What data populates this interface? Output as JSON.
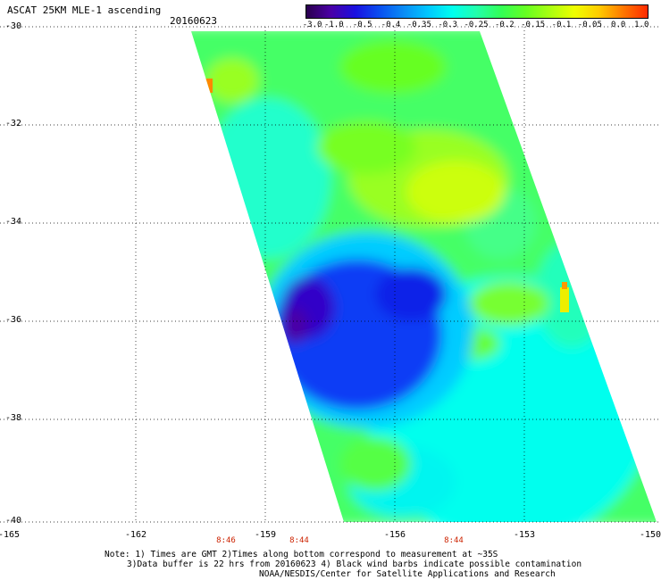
{
  "header": {
    "title": "ASCAT 25KM MLE-1 ascending",
    "date": "20160623"
  },
  "colorbar": {
    "ticks": [
      "-3.0",
      "-1.0",
      "-0.5",
      "-0.4",
      "-0.35",
      "-0.3",
      "-0.25",
      "-0.2",
      "-0.15",
      "-0.1",
      "-0.05",
      "0.0",
      "1.0"
    ],
    "colors": [
      "#2a004d",
      "#4a00a6",
      "#1a10e0",
      "#0a4ff0",
      "#0a8cf5",
      "#00c8ff",
      "#00ffee",
      "#22ffaa",
      "#33ff55",
      "#66ff22",
      "#aaff11",
      "#eeff00",
      "#ffcc00",
      "#ff7700",
      "#ff2a00"
    ]
  },
  "map": {
    "lat_labels": [
      "-30",
      "-32",
      "-34",
      "-36",
      "-38",
      "-40"
    ],
    "lon_labels": [
      "-165",
      "-162",
      "-159",
      "-156",
      "-153",
      "-150"
    ],
    "time_labels": [
      "8:46",
      "8:44",
      "8:44"
    ],
    "lat_range": [
      -40,
      -30
    ],
    "lon_range": [
      -165,
      -150
    ],
    "grid": true
  },
  "notes": {
    "line1": "Note: 1) Times are GMT 2)Times along bottom correspond to measurement at ~35S",
    "line2": "3)Data buffer is 22 hrs from 20160623 4) Black wind barbs indicate possible contamination",
    "line3": "NOAA/NESDIS/Center for Satellite Applications and Research"
  }
}
